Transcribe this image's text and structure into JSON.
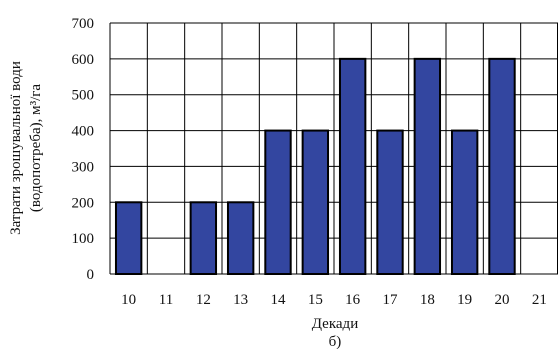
{
  "chart_data": {
    "type": "bar",
    "categories": [
      "10",
      "11",
      "12",
      "13",
      "14",
      "15",
      "16",
      "17",
      "18",
      "19",
      "20",
      "21"
    ],
    "values": [
      200,
      0,
      200,
      200,
      400,
      400,
      600,
      400,
      600,
      400,
      600,
      0
    ],
    "xlabel": "Декади",
    "ylabel_lines": [
      "Затрати зрошувальної води",
      "(водопотреба), м³/га"
    ],
    "ylim": [
      0,
      700
    ],
    "yticks": [
      0,
      100,
      200,
      300,
      400,
      500,
      600,
      700
    ],
    "grid": "major, both axes",
    "legend": "none",
    "caption": "б)",
    "colors": {
      "bar_fill": "#3346a0",
      "bar_stroke": "#000000",
      "grid": "#000000"
    }
  }
}
